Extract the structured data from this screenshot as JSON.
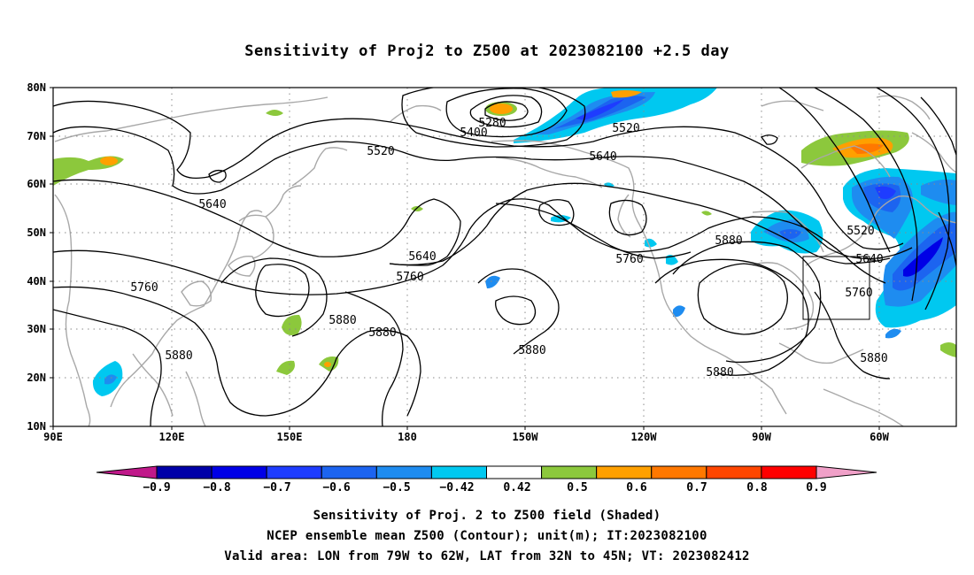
{
  "title": "Sensitivity of Proj2 to Z500 at 2023082100 +2.5 day",
  "map": {
    "lat_labels": [
      "80N",
      "70N",
      "60N",
      "50N",
      "40N",
      "30N",
      "20N",
      "10N"
    ],
    "lon_labels": [
      "90E",
      "120E",
      "150E",
      "180",
      "150W",
      "120W",
      "90W",
      "60W"
    ],
    "contour_levels": [
      "5280",
      "5400",
      "5520",
      "5640",
      "5760",
      "5880"
    ],
    "contour_labels": [
      {
        "id": "c5280",
        "text": "5280"
      },
      {
        "id": "c5400",
        "text": "5400"
      },
      {
        "id": "c5520a",
        "text": "5520"
      },
      {
        "id": "c5520b",
        "text": "5520"
      },
      {
        "id": "c5520c",
        "text": "5520"
      },
      {
        "id": "c5640a",
        "text": "5640"
      },
      {
        "id": "c5640b",
        "text": "5640"
      },
      {
        "id": "c5640c",
        "text": "5640"
      },
      {
        "id": "c5640d",
        "text": "5640"
      },
      {
        "id": "c5760a",
        "text": "5760"
      },
      {
        "id": "c5760b",
        "text": "5760"
      },
      {
        "id": "c5760c",
        "text": "5760"
      },
      {
        "id": "c5760d",
        "text": "5760"
      },
      {
        "id": "c5880a",
        "text": "5880"
      },
      {
        "id": "c5880b",
        "text": "5880"
      },
      {
        "id": "c5880c",
        "text": "5880"
      },
      {
        "id": "c5880d",
        "text": "5880"
      },
      {
        "id": "c5880e",
        "text": "5880"
      },
      {
        "id": "c5880f",
        "text": "5880"
      },
      {
        "id": "c5880g",
        "text": "5880"
      }
    ],
    "valid_area": {
      "lon": [
        "79W",
        "62W"
      ],
      "lat": [
        "32N",
        "45N"
      ]
    }
  },
  "colorbar": {
    "labels": [
      "−0.9",
      "−0.8",
      "−0.7",
      "−0.6",
      "−0.5",
      "−0.42",
      "0.42",
      "0.5",
      "0.6",
      "0.7",
      "0.8",
      "0.9"
    ],
    "colors": [
      "#c0198a",
      "#0000a8",
      "#0000e6",
      "#1e3cff",
      "#1c64f0",
      "#1e8cf0",
      "#00c8f0",
      "#ffffff",
      "#8cc83c",
      "#ffa000",
      "#ff7800",
      "#ff4600",
      "#ff0000",
      "#f0a0c8"
    ]
  },
  "captions": [
    "Sensitivity of Proj. 2 to Z500 field (Shaded)",
    "NCEP ensemble mean Z500 (Contour); unit(m); IT:2023082100",
    "Valid area: LON from 79W to 62W, LAT from 32N to 45N; VT: 2023082412"
  ]
}
